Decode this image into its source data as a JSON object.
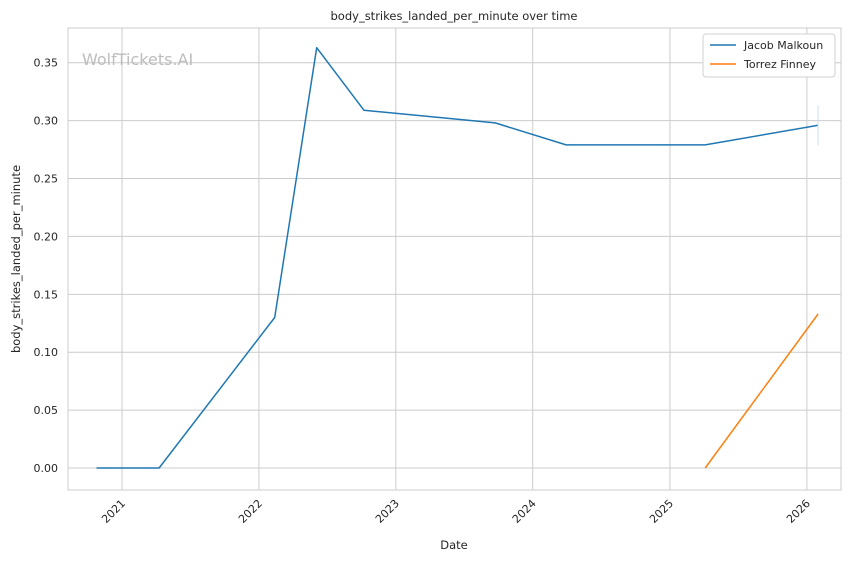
{
  "chart_data": {
    "type": "line",
    "title": "body_strikes_landed_per_minute over time",
    "xlabel": "Date",
    "ylabel": "body_strikes_landed_per_minute",
    "watermark": "WolfTickets.AI",
    "x_ticks": [
      "2021",
      "2022",
      "2023",
      "2024",
      "2025",
      "2026"
    ],
    "y_ticks": [
      "0.00",
      "0.05",
      "0.10",
      "0.15",
      "0.20",
      "0.25",
      "0.30",
      "0.35"
    ],
    "ylim": [
      -0.019,
      0.38
    ],
    "xlim": [
      "2020-08-10",
      "2026-04-02"
    ],
    "grid": true,
    "legend_position": "top-right",
    "series": [
      {
        "name": "Jacob Malkoun",
        "color": "#1f77b4",
        "points": [
          {
            "x": "2020-10-25",
            "y": 0.0
          },
          {
            "x": "2021-04-10",
            "y": 0.0
          },
          {
            "x": "2022-02-12",
            "y": 0.13
          },
          {
            "x": "2022-06-04",
            "y": 0.363
          },
          {
            "x": "2022-10-08",
            "y": 0.309
          },
          {
            "x": "2023-09-23",
            "y": 0.298
          },
          {
            "x": "2024-03-30",
            "y": 0.279
          },
          {
            "x": "2025-04-05",
            "y": 0.279
          },
          {
            "x": "2026-01-31",
            "y": 0.296
          }
        ]
      },
      {
        "name": "Torrez Finney",
        "color": "#ff7f0e",
        "points": [
          {
            "x": "2025-04-05",
            "y": 0.0
          },
          {
            "x": "2026-01-31",
            "y": 0.133
          }
        ]
      }
    ]
  }
}
